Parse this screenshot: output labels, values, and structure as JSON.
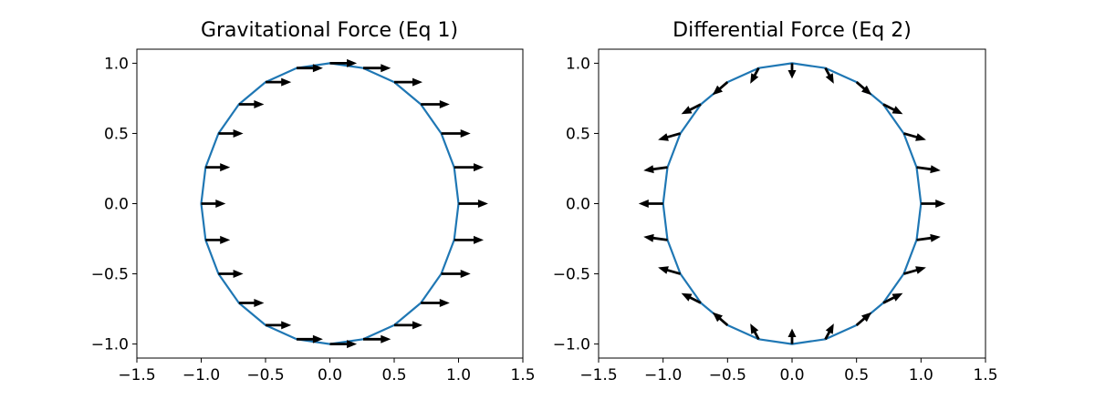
{
  "chart_data": [
    {
      "type": "line",
      "title": "Gravitational Force (Eq 1)",
      "xlim": [
        -1.5,
        1.5
      ],
      "ylim": [
        -1.1,
        1.1
      ],
      "xticks": [
        "−1.5",
        "−1.0",
        "−0.5",
        "0.0",
        "0.5",
        "1.0",
        "1.5"
      ],
      "yticks": [
        "−1.0",
        "−0.5",
        "0.0",
        "0.5",
        "1.0"
      ],
      "xtick_values": [
        -1.5,
        -1.0,
        -0.5,
        0.0,
        0.5,
        1.0,
        1.5
      ],
      "ytick_values": [
        -1.0,
        -0.5,
        0.0,
        0.5,
        1.0
      ],
      "series_color": "#1f77b4",
      "curve": "unit circle, 24 straight segments",
      "arrows": "uniform horizontal vectors pointing +x at each vertex, length grows with x",
      "arrow_color": "#000000"
    },
    {
      "type": "line",
      "title": "Differential Force (Eq 2)",
      "xlim": [
        -1.5,
        1.5
      ],
      "ylim": [
        -1.1,
        1.1
      ],
      "xticks": [
        "−1.5",
        "−1.0",
        "−0.5",
        "0.0",
        "0.5",
        "1.0",
        "1.5"
      ],
      "yticks": [
        "−1.0",
        "−0.5",
        "0.0",
        "0.5",
        "1.0"
      ],
      "xtick_values": [
        -1.5,
        -1.0,
        -0.5,
        0.0,
        0.5,
        1.0,
        1.5
      ],
      "ytick_values": [
        -1.0,
        -0.5,
        0.0,
        0.5,
        1.0
      ],
      "series_color": "#1f77b4",
      "curve": "unit circle, 24 straight segments",
      "arrows": "tidal (differential) vectors: outward along x-axis, inward along y-axis",
      "arrow_color": "#000000"
    }
  ]
}
